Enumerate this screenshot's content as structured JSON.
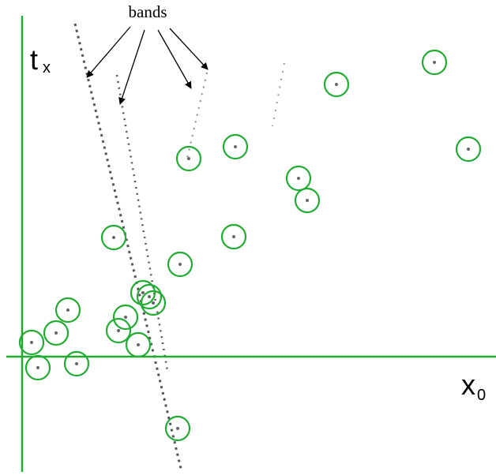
{
  "annotation": "bands",
  "axes": {
    "y_label": "t",
    "y_subscript": "x",
    "x_label": "x",
    "x_subscript": "0"
  }
}
